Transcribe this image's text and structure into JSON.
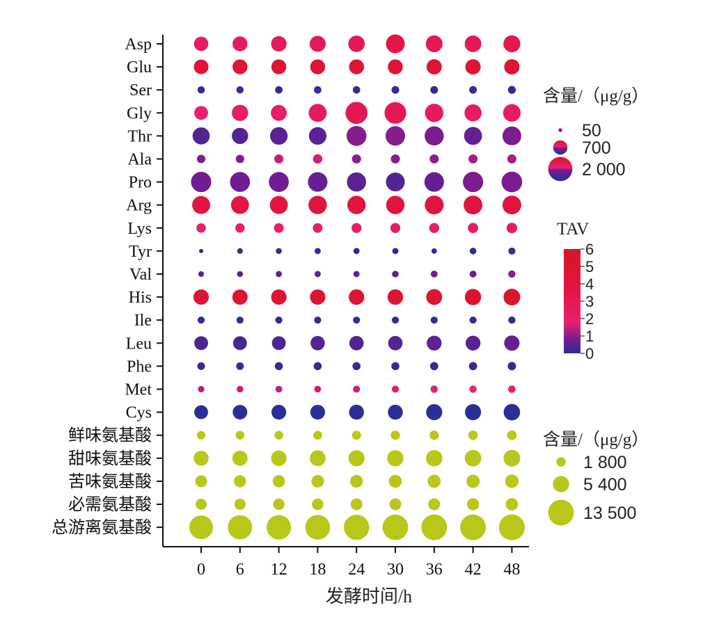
{
  "chart_data": {
    "type": "bubble",
    "xlabel": "发酵时间/h",
    "x": [
      "0",
      "6",
      "12",
      "18",
      "24",
      "30",
      "36",
      "42",
      "48"
    ],
    "amino_acids": [
      {
        "name": "Asp",
        "content": [
          700,
          760,
          820,
          880,
          920,
          1200,
          960,
          940,
          980
        ],
        "tav": [
          2.4,
          2.5,
          2.6,
          2.7,
          2.8,
          3.4,
          2.9,
          2.9,
          3.0
        ]
      },
      {
        "name": "Glu",
        "content": [
          730,
          760,
          760,
          760,
          760,
          760,
          790,
          800,
          800
        ],
        "tav": [
          4.5,
          4.6,
          4.7,
          4.7,
          4.8,
          4.8,
          4.9,
          4.9,
          5.0
        ]
      },
      {
        "name": "Ser",
        "content": [
          180,
          180,
          190,
          190,
          190,
          200,
          200,
          200,
          210
        ],
        "tav": [
          0.1,
          0.1,
          0.1,
          0.1,
          0.1,
          0.1,
          0.1,
          0.1,
          0.1
        ]
      },
      {
        "name": "Gly",
        "content": [
          650,
          900,
          860,
          1100,
          1650,
          1600,
          1150,
          1000,
          1050
        ],
        "tav": [
          1.8,
          2.2,
          2.1,
          2.5,
          3.0,
          2.9,
          2.5,
          2.4,
          2.4
        ]
      },
      {
        "name": "Thr",
        "content": [
          1000,
          900,
          1050,
          1050,
          1350,
          1300,
          1250,
          1100,
          1200
        ],
        "tav": [
          0.4,
          0.4,
          0.5,
          0.5,
          0.9,
          0.9,
          0.8,
          0.6,
          0.8
        ]
      },
      {
        "name": "Ala",
        "content": [
          240,
          240,
          280,
          300,
          280,
          280,
          280,
          280,
          280
        ],
        "tav": [
          0.8,
          0.8,
          1.5,
          1.6,
          0.9,
          0.9,
          1.0,
          1.2,
          1.2
        ]
      },
      {
        "name": "Pro",
        "content": [
          1400,
          1350,
          1350,
          1300,
          1250,
          1200,
          1300,
          1400,
          1450
        ],
        "tav": [
          0.7,
          0.7,
          0.7,
          0.6,
          0.5,
          0.4,
          0.6,
          0.8,
          0.8
        ]
      },
      {
        "name": "Arg",
        "content": [
          1100,
          1100,
          1100,
          1150,
          1150,
          1150,
          1200,
          1200,
          1200
        ],
        "tav": [
          3.6,
          3.6,
          3.7,
          3.8,
          3.8,
          3.8,
          3.9,
          3.9,
          4.0
        ]
      },
      {
        "name": "Lys",
        "content": [
          300,
          300,
          320,
          320,
          340,
          340,
          340,
          360,
          380
        ],
        "tav": [
          2.0,
          2.0,
          2.1,
          2.1,
          2.2,
          2.2,
          2.2,
          2.3,
          2.4
        ]
      },
      {
        "name": "Tyr",
        "content": [
          60,
          110,
          120,
          130,
          130,
          130,
          100,
          150,
          170
        ],
        "tav": [
          0.0,
          0.0,
          0.0,
          0.0,
          0.0,
          0.0,
          0.0,
          0.0,
          0.0
        ]
      },
      {
        "name": "Val",
        "content": [
          110,
          120,
          130,
          130,
          130,
          150,
          160,
          160,
          180
        ],
        "tav": [
          0.5,
          0.5,
          0.5,
          0.5,
          0.6,
          0.6,
          0.7,
          0.7,
          0.9
        ]
      },
      {
        "name": "His",
        "content": [
          800,
          800,
          800,
          800,
          820,
          820,
          860,
          900,
          950
        ],
        "tav": [
          4.8,
          4.9,
          4.9,
          4.9,
          5.0,
          5.0,
          5.0,
          5.2,
          5.4
        ]
      },
      {
        "name": "Ile",
        "content": [
          170,
          170,
          170,
          170,
          170,
          170,
          170,
          170,
          180
        ],
        "tav": [
          0.1,
          0.1,
          0.1,
          0.1,
          0.1,
          0.1,
          0.1,
          0.1,
          0.1
        ]
      },
      {
        "name": "Leu",
        "content": [
          650,
          650,
          650,
          700,
          700,
          700,
          750,
          750,
          800
        ],
        "tav": [
          0.3,
          0.3,
          0.3,
          0.4,
          0.4,
          0.4,
          0.5,
          0.5,
          0.6
        ]
      },
      {
        "name": "Phe",
        "content": [
          200,
          200,
          220,
          220,
          220,
          220,
          230,
          230,
          240
        ],
        "tav": [
          0.1,
          0.1,
          0.1,
          0.1,
          0.1,
          0.1,
          0.1,
          0.1,
          0.1
        ]
      },
      {
        "name": "Met",
        "content": [
          140,
          150,
          160,
          160,
          170,
          170,
          180,
          180,
          190
        ],
        "tav": [
          1.4,
          1.5,
          1.5,
          1.6,
          1.6,
          1.7,
          1.7,
          1.8,
          1.8
        ]
      },
      {
        "name": "Cys",
        "content": [
          650,
          720,
          740,
          740,
          760,
          760,
          880,
          880,
          920
        ],
        "tav": [
          0.0,
          0.0,
          0.0,
          0.0,
          0.0,
          0.0,
          0.0,
          0.0,
          0.0
        ]
      }
    ],
    "groups": [
      {
        "name": "鲜味氨基酸",
        "content": [
          1450,
          1500,
          1550,
          1600,
          1650,
          1700,
          1750,
          1800,
          1850
        ]
      },
      {
        "name": "甜味氨基酸",
        "content": [
          4500,
          4700,
          4900,
          5100,
          5300,
          5400,
          5500,
          5600,
          5700
        ]
      },
      {
        "name": "苦味氨基酸",
        "content": [
          2900,
          3000,
          3100,
          3200,
          3300,
          3400,
          3500,
          3600,
          3700
        ]
      },
      {
        "name": "必需氨基酸",
        "content": [
          2500,
          2600,
          2650,
          2700,
          2800,
          2850,
          2900,
          3000,
          3100
        ]
      },
      {
        "name": "总游离氨基酸",
        "content": [
          11500,
          12000,
          12200,
          12500,
          13000,
          13300,
          13500,
          13500,
          13600
        ]
      }
    ],
    "legend_content_amino": {
      "title": "含量/（μg/g）",
      "values": [
        50,
        700,
        2000
      ],
      "labels": [
        "50",
        "700",
        "2 000"
      ]
    },
    "legend_tav": {
      "title": "TAV",
      "min": 0,
      "max": 6,
      "ticks": [
        "0",
        "1",
        "2",
        "3",
        "4",
        "5",
        "6"
      ]
    },
    "legend_content_groups": {
      "title": "含量/（μg/g）",
      "values": [
        1800,
        5400,
        13500
      ],
      "labels": [
        "1 800",
        "5 400",
        "13 500"
      ]
    },
    "colors": {
      "low": "#2a2e96",
      "mid1": "#7a1a8e",
      "mid2": "#e81c7c",
      "high": "#d61626",
      "group": "#b8c71a"
    }
  }
}
